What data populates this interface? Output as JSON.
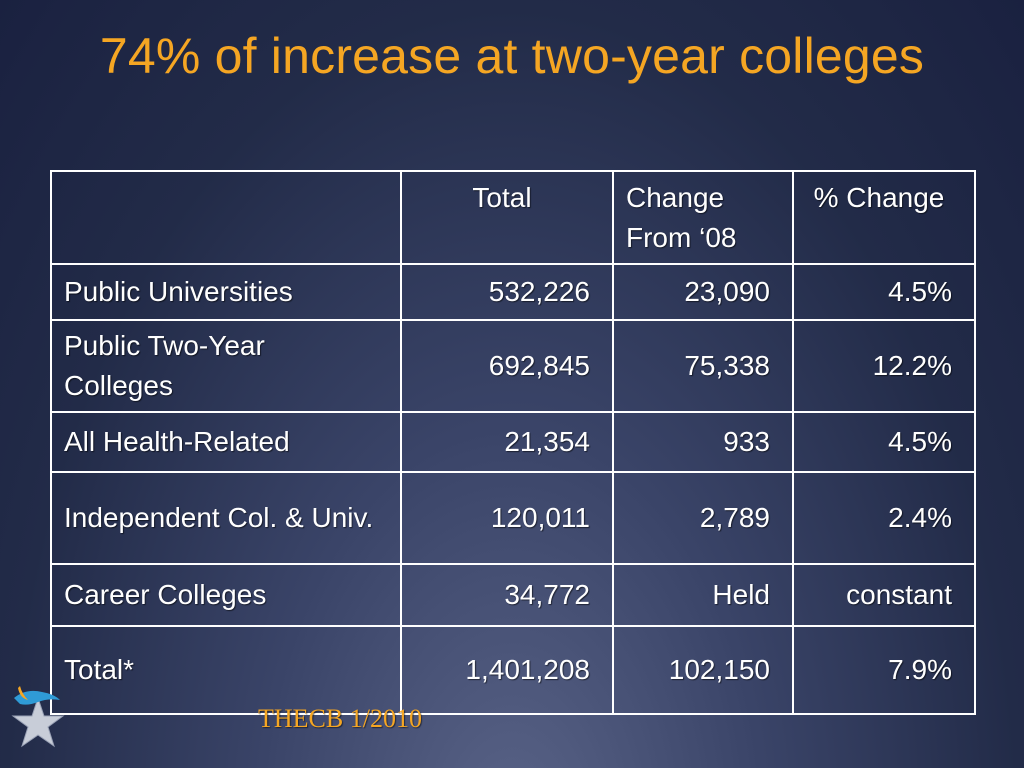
{
  "slide": {
    "title": "74% of increase at two-year colleges",
    "footer": "THECB 1/2010"
  },
  "table": {
    "headers": [
      "",
      "Total",
      "Change From ‘08",
      "% Change"
    ],
    "rows": [
      {
        "label": "Public Universities",
        "total": "532,226",
        "change": "23,090",
        "pct": "4.5%"
      },
      {
        "label": "Public Two-Year Colleges",
        "total": "692,845",
        "change": "75,338",
        "pct": "12.2%"
      },
      {
        "label": "All Health-Related",
        "total": "21,354",
        "change": "933",
        "pct": "4.5%"
      },
      {
        "label": "Independent Col. & Univ.",
        "total": "120,011",
        "change": "2,789",
        "pct": "2.4%"
      },
      {
        "label": "Career Colleges",
        "total": "34,772",
        "change": "Held",
        "pct": "constant"
      },
      {
        "label": "Total*",
        "total": "1,401,208",
        "change": "102,150",
        "pct": "7.9%"
      }
    ]
  },
  "colors": {
    "title": "#f5a623",
    "label_text": "#fff3a8",
    "cell_text": "#ffffff",
    "border": "#ffffff",
    "logo_star": "#c8cdd8",
    "logo_bird": "#2f9bd6",
    "logo_wing": "#f5a623"
  },
  "icons": {
    "logo": "star-with-bird-logo"
  }
}
